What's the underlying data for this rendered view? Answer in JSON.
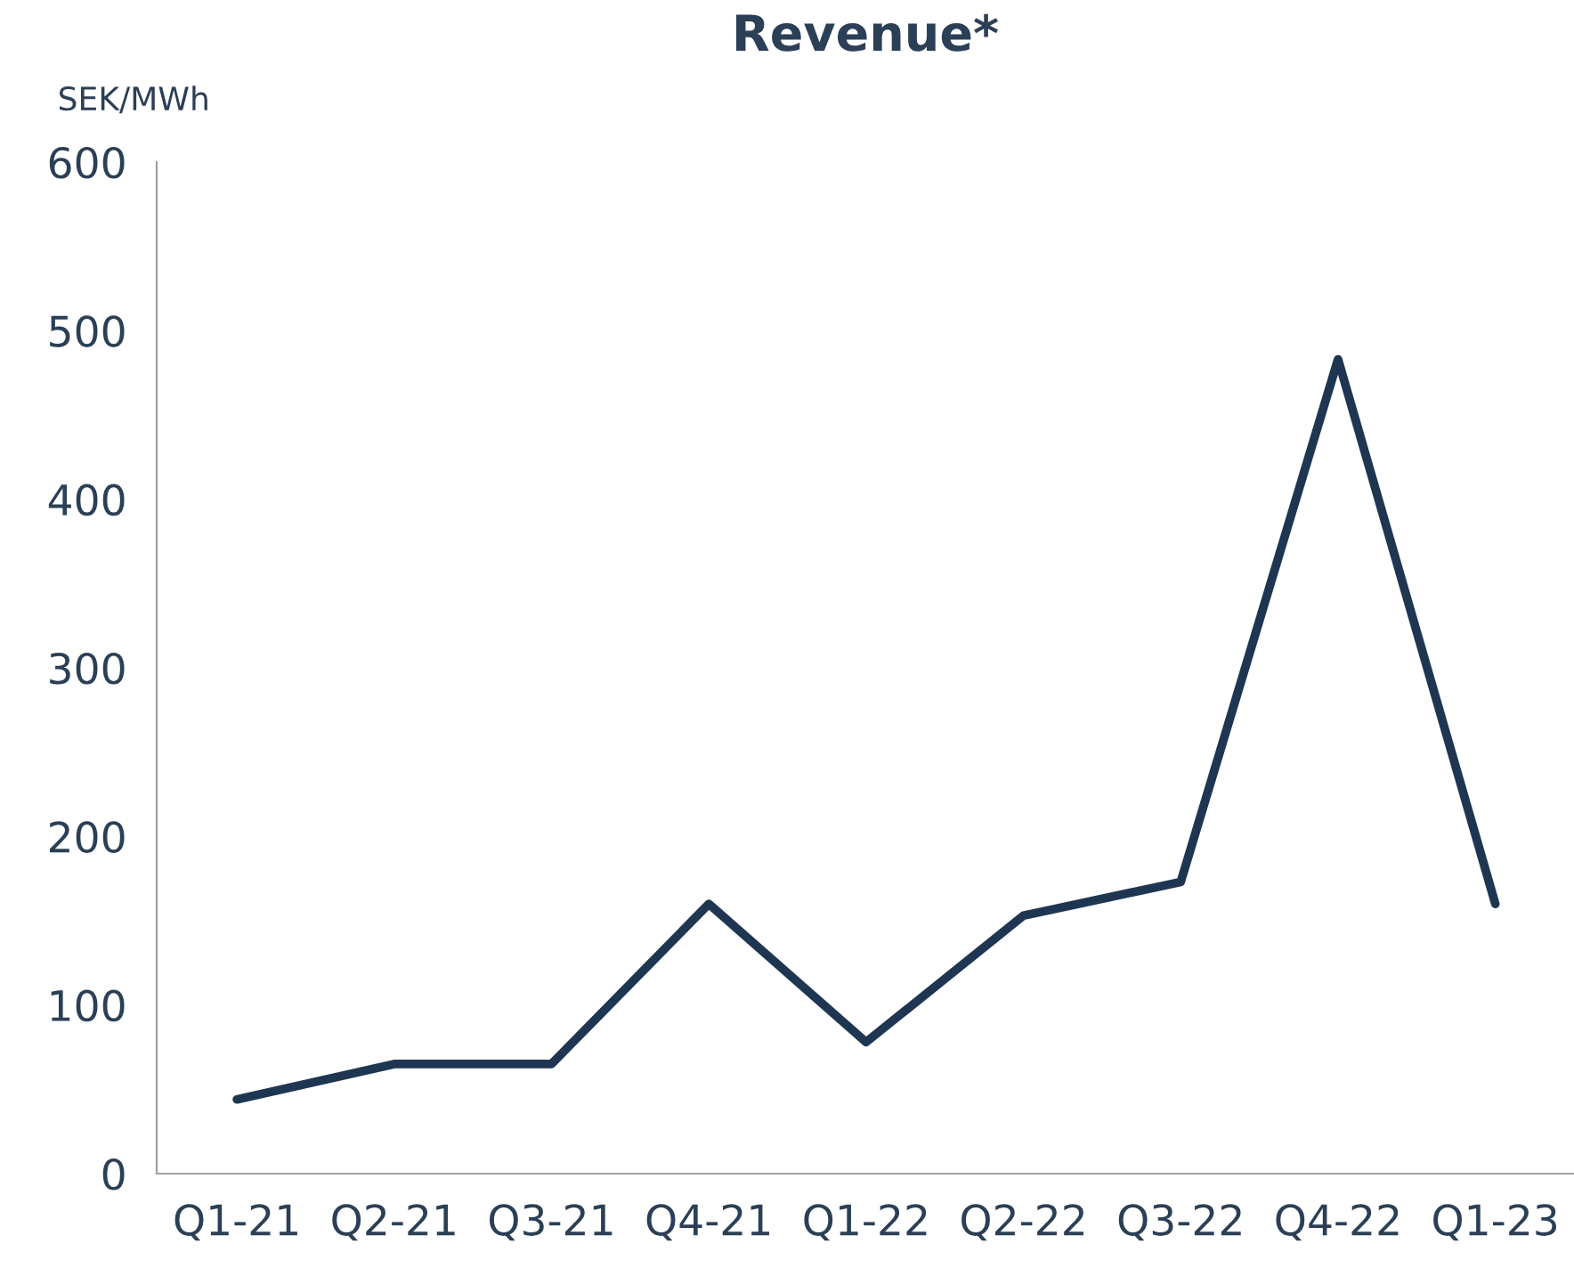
{
  "chart_data": {
    "type": "line",
    "title": "Revenue*",
    "ylabel": "SEK/MWh",
    "categories": [
      "Q1-21",
      "Q2-21",
      "Q3-21",
      "Q4-21",
      "Q1-22",
      "Q2-22",
      "Q3-22",
      "Q4-22",
      "Q1-23"
    ],
    "series": [
      {
        "color": "#1f3652",
        "values": [
          44,
          65,
          65,
          160,
          78,
          153,
          173,
          483,
          160
        ]
      }
    ],
    "ylim": [
      0,
      600
    ],
    "yticks": [
      0,
      100,
      200,
      300,
      400,
      500,
      600
    ],
    "grid": false,
    "marker": "none",
    "line_style": "solid"
  }
}
